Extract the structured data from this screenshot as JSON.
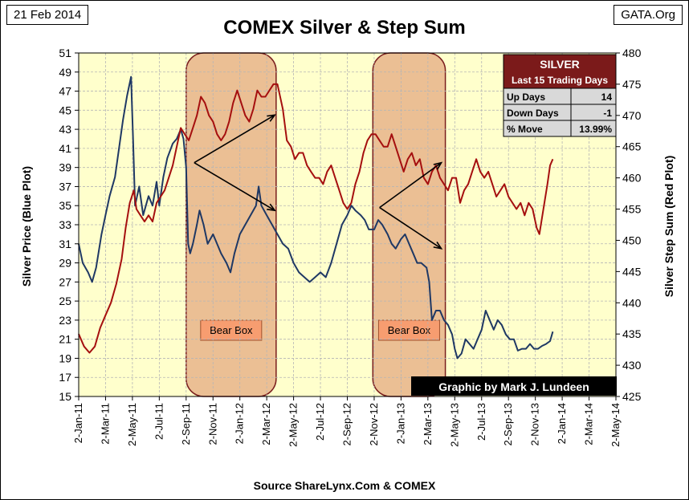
{
  "header": {
    "date": "21 Feb 2014",
    "title": "COMEX Silver & Step Sum",
    "source_tag": "GATA.Org"
  },
  "footer": {
    "source": "Source ShareLynx.Com & COMEX"
  },
  "credit": "Graphic by Mark J. Lundeen",
  "stats_table": {
    "title": "SILVER",
    "subtitle": "Last 15 Trading Days",
    "rows": [
      {
        "label": "Up Days",
        "value": "14"
      },
      {
        "label": "Down Days",
        "value": "-1"
      },
      {
        "label": "% Move",
        "value": "13.99%"
      }
    ]
  },
  "colors": {
    "plot_bg": "#ffffcc",
    "blue": "#1f3864",
    "red": "#a50f0f",
    "box_fill": "#e8b48a",
    "box_edge": "#7a1e1e",
    "bear_label_bg": "#f79d70",
    "table_head": "#7b1a1a",
    "table_body": "#d9d9d9"
  },
  "chart_data": {
    "type": "line",
    "x_tick_labels": [
      "2-Jan-11",
      "2-Mar-11",
      "2-May-11",
      "2-Jul-11",
      "2-Sep-11",
      "2-Nov-11",
      "2-Jan-12",
      "2-Mar-12",
      "2-May-12",
      "2-Jul-12",
      "2-Sep-12",
      "2-Nov-12",
      "2-Jan-13",
      "2-Mar-13",
      "2-May-13",
      "2-Jul-13",
      "2-Sep-13",
      "2-Nov-13",
      "2-Jan-14",
      "2-Mar-14",
      "2-May-14"
    ],
    "x_range_months": [
      0,
      40
    ],
    "y_left": {
      "label": "Silver Price  (Blue Plot)",
      "min": 15,
      "max": 51,
      "ticks": [
        15,
        17,
        19,
        21,
        23,
        25,
        27,
        29,
        31,
        33,
        35,
        37,
        39,
        41,
        43,
        45,
        47,
        49,
        51
      ]
    },
    "y_right": {
      "label": "Silver Step Sum  (Red Plot)",
      "min": 425,
      "max": 480,
      "ticks": [
        425,
        430,
        435,
        440,
        445,
        450,
        455,
        460,
        465,
        470,
        475,
        480
      ]
    },
    "grid": true,
    "series": [
      {
        "name": "Silver Price",
        "axis": "left",
        "color": "blue",
        "points": [
          [
            0,
            31
          ],
          [
            0.3,
            29
          ],
          [
            0.7,
            28
          ],
          [
            1,
            27
          ],
          [
            1.3,
            28.5
          ],
          [
            1.7,
            32
          ],
          [
            2,
            34
          ],
          [
            2.3,
            36
          ],
          [
            2.7,
            38
          ],
          [
            3,
            41
          ],
          [
            3.3,
            44
          ],
          [
            3.6,
            46.5
          ],
          [
            3.9,
            48.5
          ],
          [
            4.05,
            42
          ],
          [
            4.2,
            35
          ],
          [
            4.5,
            37
          ],
          [
            4.8,
            34
          ],
          [
            5.2,
            36
          ],
          [
            5.5,
            35
          ],
          [
            5.8,
            37.5
          ],
          [
            6,
            35
          ],
          [
            6.3,
            38
          ],
          [
            6.6,
            40
          ],
          [
            7,
            41.5
          ],
          [
            7.3,
            42
          ],
          [
            7.6,
            43
          ],
          [
            7.8,
            42
          ],
          [
            8,
            39
          ],
          [
            8.15,
            31
          ],
          [
            8.3,
            30
          ],
          [
            8.5,
            31
          ],
          [
            8.8,
            33
          ],
          [
            9,
            34.5
          ],
          [
            9.3,
            33
          ],
          [
            9.6,
            31
          ],
          [
            10,
            32
          ],
          [
            10.3,
            31
          ],
          [
            10.6,
            30
          ],
          [
            11,
            29
          ],
          [
            11.3,
            28
          ],
          [
            11.6,
            30
          ],
          [
            12,
            32
          ],
          [
            12.4,
            33
          ],
          [
            12.8,
            34
          ],
          [
            13.2,
            35
          ],
          [
            13.4,
            37
          ],
          [
            13.6,
            35
          ],
          [
            14,
            34
          ],
          [
            14.4,
            33
          ],
          [
            14.8,
            32
          ],
          [
            15.2,
            31
          ],
          [
            15.6,
            30.5
          ],
          [
            16,
            29
          ],
          [
            16.4,
            28
          ],
          [
            16.8,
            27.5
          ],
          [
            17.2,
            27
          ],
          [
            17.6,
            27.5
          ],
          [
            18,
            28
          ],
          [
            18.4,
            27.5
          ],
          [
            18.8,
            29
          ],
          [
            19.2,
            31
          ],
          [
            19.6,
            33
          ],
          [
            20,
            34
          ],
          [
            20.3,
            35
          ],
          [
            20.6,
            34.5
          ],
          [
            21,
            34
          ],
          [
            21.3,
            33.5
          ],
          [
            21.6,
            32.5
          ],
          [
            22,
            32.5
          ],
          [
            22.3,
            33.5
          ],
          [
            22.6,
            33
          ],
          [
            23,
            32
          ],
          [
            23.3,
            31
          ],
          [
            23.6,
            30.5
          ],
          [
            24,
            31.5
          ],
          [
            24.3,
            32
          ],
          [
            24.6,
            31
          ],
          [
            24.9,
            30
          ],
          [
            25.2,
            29
          ],
          [
            25.5,
            29
          ],
          [
            25.9,
            28.5
          ],
          [
            26.1,
            27
          ],
          [
            26.3,
            23
          ],
          [
            26.6,
            24
          ],
          [
            26.9,
            24
          ],
          [
            27.2,
            23
          ],
          [
            27.5,
            22.5
          ],
          [
            27.8,
            21.5
          ],
          [
            28,
            20
          ],
          [
            28.2,
            19
          ],
          [
            28.5,
            19.5
          ],
          [
            28.8,
            21
          ],
          [
            29.1,
            20.5
          ],
          [
            29.4,
            20
          ],
          [
            29.7,
            21
          ],
          [
            30,
            22
          ],
          [
            30.3,
            24
          ],
          [
            30.6,
            23
          ],
          [
            30.9,
            22
          ],
          [
            31.2,
            23
          ],
          [
            31.5,
            22.5
          ],
          [
            31.8,
            21.5
          ],
          [
            32.1,
            21
          ],
          [
            32.4,
            21
          ],
          [
            32.7,
            19.8
          ],
          [
            33,
            20
          ],
          [
            33.3,
            20
          ],
          [
            33.6,
            20.5
          ],
          [
            33.9,
            20
          ],
          [
            34.2,
            20
          ],
          [
            34.5,
            20.3
          ],
          [
            34.8,
            20.5
          ],
          [
            35.1,
            20.8
          ],
          [
            35.3,
            21.8
          ]
        ]
      },
      {
        "name": "Silver Step Sum",
        "axis": "right",
        "color": "red",
        "points": [
          [
            0,
            435
          ],
          [
            0.4,
            433
          ],
          [
            0.8,
            432
          ],
          [
            1.2,
            433
          ],
          [
            1.6,
            436
          ],
          [
            2,
            438
          ],
          [
            2.4,
            440
          ],
          [
            2.8,
            443
          ],
          [
            3.2,
            447
          ],
          [
            3.5,
            452
          ],
          [
            3.8,
            456
          ],
          [
            4.1,
            458
          ],
          [
            4.3,
            455
          ],
          [
            4.6,
            454
          ],
          [
            4.9,
            453
          ],
          [
            5.2,
            454
          ],
          [
            5.5,
            453
          ],
          [
            5.8,
            456
          ],
          [
            6.1,
            457
          ],
          [
            6.4,
            458
          ],
          [
            6.7,
            460
          ],
          [
            7,
            462
          ],
          [
            7.3,
            465
          ],
          [
            7.6,
            468
          ],
          [
            7.9,
            467
          ],
          [
            8.2,
            466
          ],
          [
            8.5,
            468
          ],
          [
            8.8,
            470
          ],
          [
            9.1,
            473
          ],
          [
            9.4,
            472
          ],
          [
            9.7,
            470
          ],
          [
            10,
            469
          ],
          [
            10.3,
            467
          ],
          [
            10.6,
            466
          ],
          [
            10.9,
            467
          ],
          [
            11.2,
            469
          ],
          [
            11.5,
            472
          ],
          [
            11.8,
            474
          ],
          [
            12.1,
            472
          ],
          [
            12.4,
            470
          ],
          [
            12.7,
            469
          ],
          [
            13,
            471
          ],
          [
            13.3,
            474
          ],
          [
            13.6,
            473
          ],
          [
            13.9,
            473
          ],
          [
            14.2,
            474
          ],
          [
            14.5,
            475
          ],
          [
            14.8,
            475
          ],
          [
            15.2,
            471
          ],
          [
            15.5,
            466
          ],
          [
            15.8,
            465
          ],
          [
            16.1,
            463
          ],
          [
            16.4,
            464
          ],
          [
            16.7,
            464
          ],
          [
            17,
            462
          ],
          [
            17.3,
            461
          ],
          [
            17.6,
            460
          ],
          [
            17.9,
            460
          ],
          [
            18.2,
            459
          ],
          [
            18.5,
            461
          ],
          [
            18.8,
            462
          ],
          [
            19.1,
            460
          ],
          [
            19.4,
            458
          ],
          [
            19.7,
            456
          ],
          [
            20,
            455
          ],
          [
            20.3,
            456
          ],
          [
            20.6,
            459
          ],
          [
            20.9,
            461
          ],
          [
            21.2,
            464
          ],
          [
            21.5,
            466
          ],
          [
            21.8,
            467
          ],
          [
            22.1,
            467
          ],
          [
            22.4,
            466
          ],
          [
            22.7,
            465
          ],
          [
            23,
            465
          ],
          [
            23.3,
            467
          ],
          [
            23.6,
            465
          ],
          [
            23.9,
            463
          ],
          [
            24.2,
            461
          ],
          [
            24.5,
            463
          ],
          [
            24.8,
            464
          ],
          [
            25.1,
            462
          ],
          [
            25.4,
            463
          ],
          [
            25.7,
            460
          ],
          [
            26,
            459
          ],
          [
            26.3,
            461
          ],
          [
            26.6,
            462
          ],
          [
            26.9,
            460
          ],
          [
            27.2,
            459
          ],
          [
            27.5,
            458
          ],
          [
            27.8,
            460
          ],
          [
            28.1,
            460
          ],
          [
            28.4,
            456
          ],
          [
            28.7,
            458
          ],
          [
            29,
            459
          ],
          [
            29.3,
            461
          ],
          [
            29.6,
            463
          ],
          [
            29.9,
            461
          ],
          [
            30.2,
            460
          ],
          [
            30.5,
            461
          ],
          [
            30.8,
            459
          ],
          [
            31.1,
            457
          ],
          [
            31.4,
            458
          ],
          [
            31.7,
            459
          ],
          [
            32,
            457
          ],
          [
            32.3,
            456
          ],
          [
            32.6,
            455
          ],
          [
            32.9,
            456
          ],
          [
            33.2,
            454
          ],
          [
            33.5,
            456
          ],
          [
            33.8,
            455
          ],
          [
            34.1,
            452
          ],
          [
            34.3,
            451
          ],
          [
            34.6,
            455
          ],
          [
            34.9,
            459
          ],
          [
            35.1,
            462
          ],
          [
            35.3,
            463
          ]
        ]
      }
    ],
    "bear_boxes": [
      {
        "label": "Bear Box",
        "x_start": 8.0,
        "x_end": 14.7
      },
      {
        "label": "Bear Box",
        "x_start": 21.9,
        "x_end": 27.3
      }
    ],
    "arrows": [
      {
        "from": [
          8.6,
          39.5
        ],
        "to": [
          14.6,
          44.5
        ]
      },
      {
        "from": [
          8.6,
          39.5
        ],
        "to": [
          14.6,
          34.5
        ]
      },
      {
        "from": [
          22.4,
          34.8
        ],
        "to": [
          27.0,
          39.5
        ]
      },
      {
        "from": [
          22.4,
          34.8
        ],
        "to": [
          27.0,
          30.5
        ]
      }
    ]
  }
}
